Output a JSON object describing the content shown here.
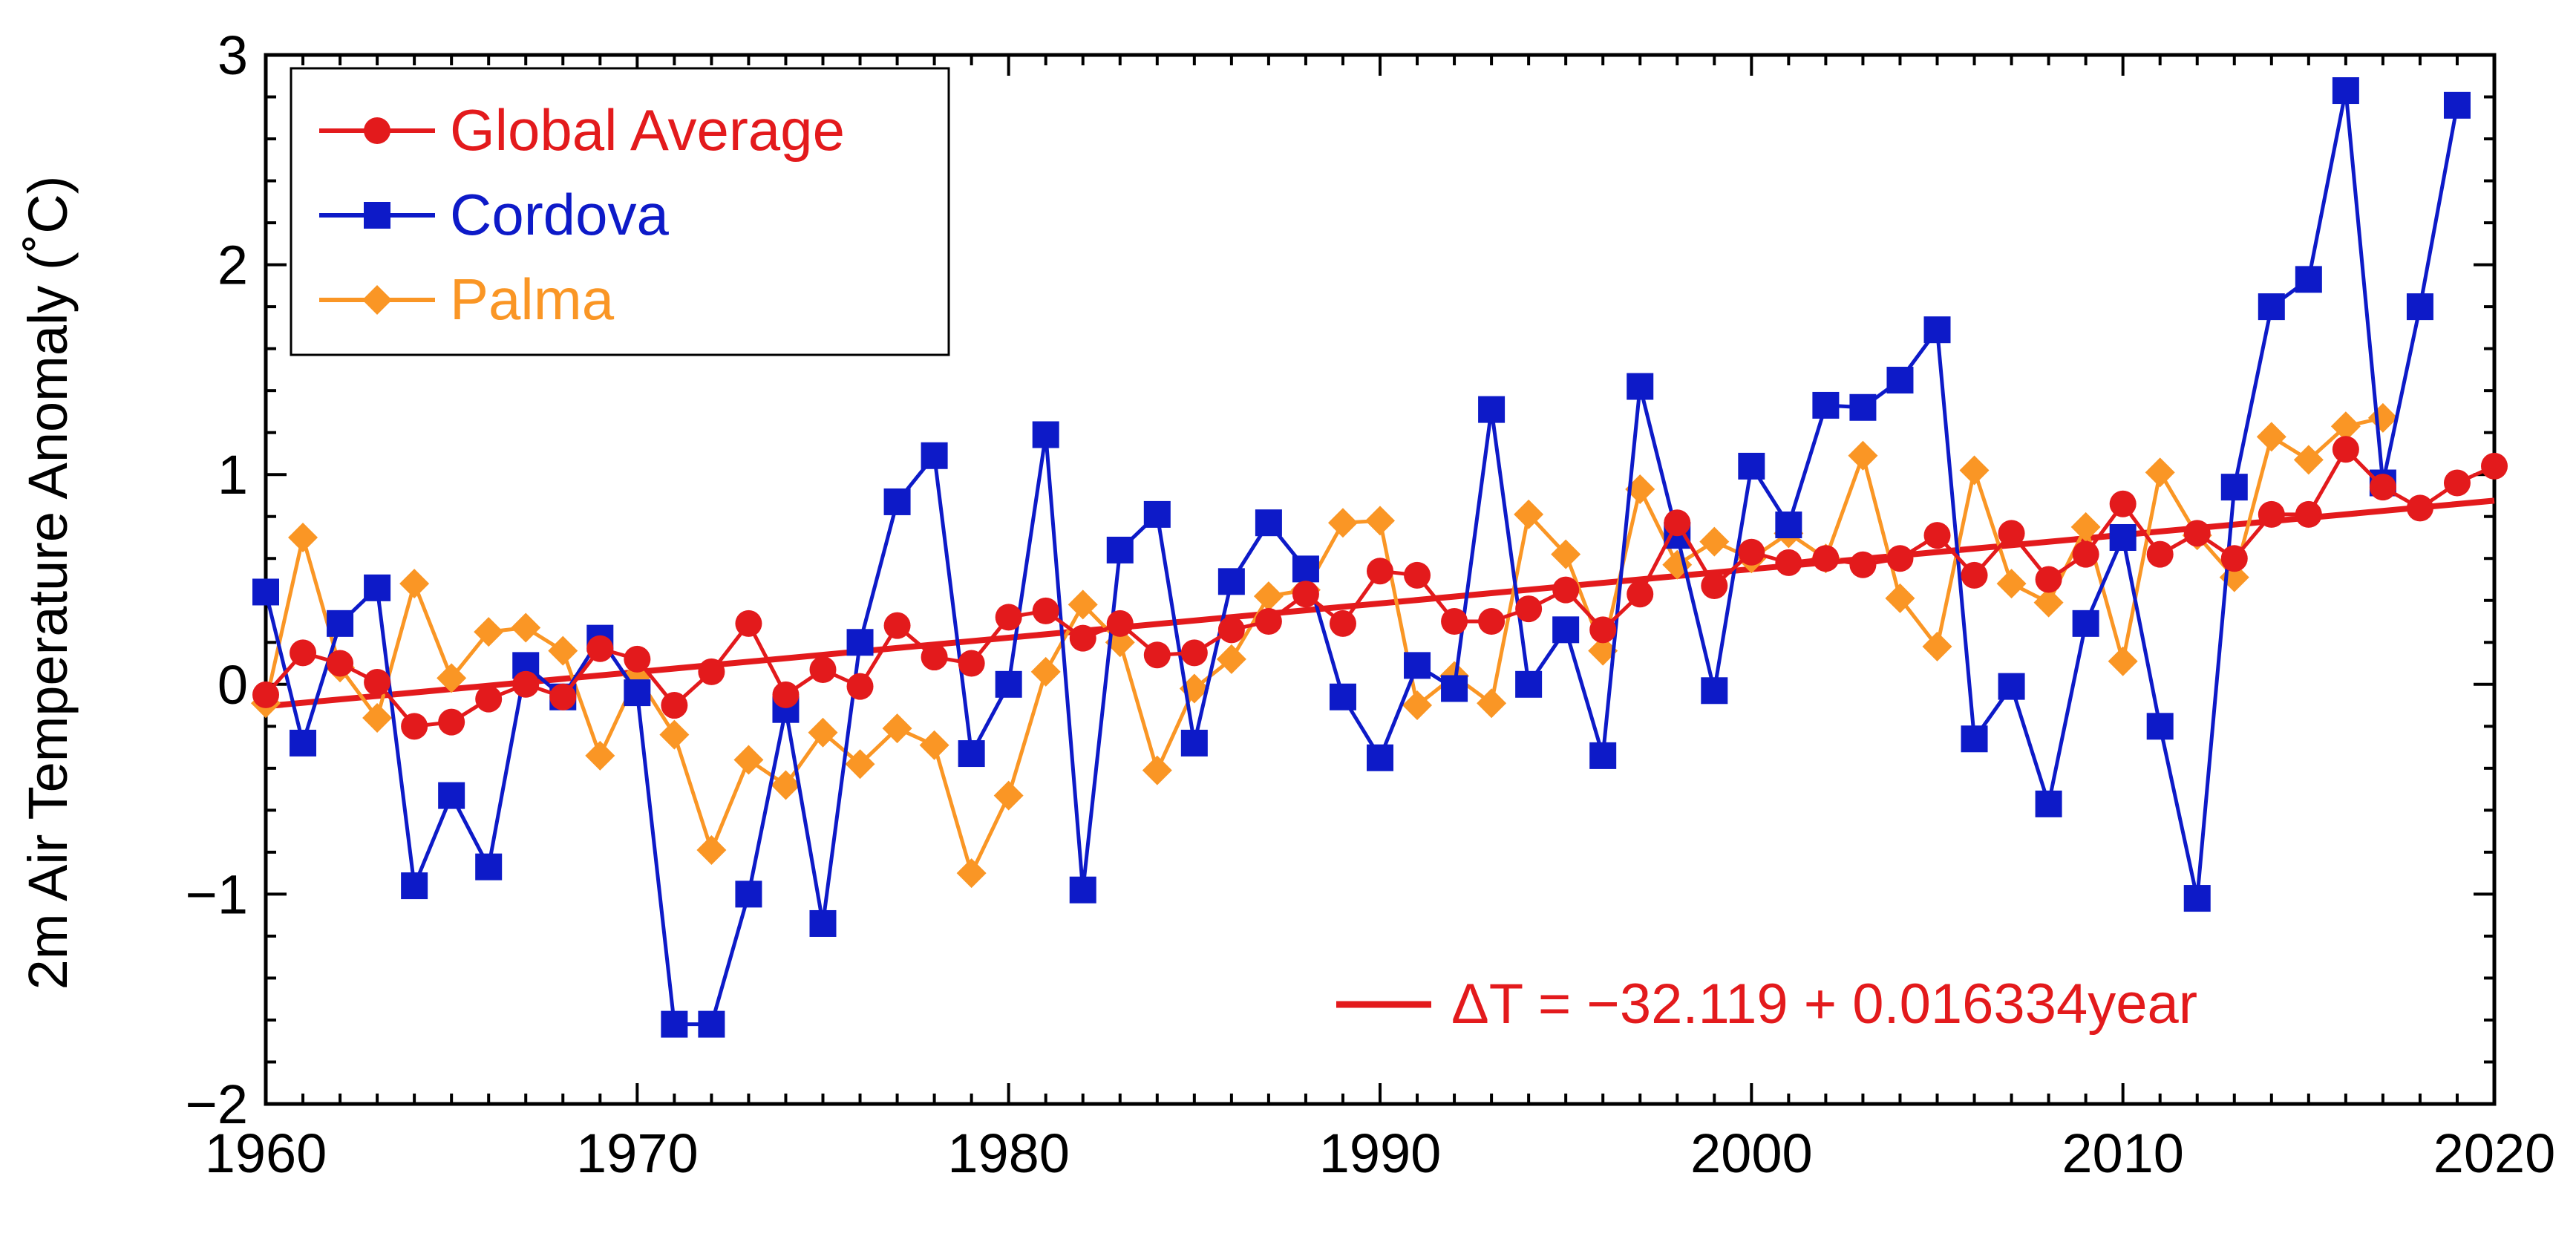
{
  "chart_data": {
    "type": "line",
    "xlabel": "",
    "ylabel": "2m Air Temperature Anomaly (˚C)",
    "xlim": [
      1960,
      2020
    ],
    "ylim": [
      -2,
      3
    ],
    "x_ticks": [
      1960,
      1970,
      1980,
      1990,
      2000,
      2010,
      2020
    ],
    "x_tick_labels": [
      "1960",
      "1970",
      "1980",
      "1990",
      "2000",
      "2010",
      "2020"
    ],
    "y_ticks": [
      -2,
      -1,
      0,
      1,
      2,
      3
    ],
    "y_tick_labels": [
      "−2",
      "−1",
      "0",
      "1",
      "2",
      "3"
    ],
    "grid": false,
    "legend_position": "top-left",
    "series": [
      {
        "name": "Global Average",
        "color": "#e31a1c",
        "marker": "circle",
        "x": [
          1960,
          1961,
          1962,
          1963,
          1964,
          1965,
          1966,
          1967,
          1968,
          1969,
          1970,
          1971,
          1972,
          1973,
          1974,
          1975,
          1976,
          1977,
          1978,
          1979,
          1980,
          1981,
          1982,
          1983,
          1984,
          1985,
          1986,
          1987,
          1988,
          1989,
          1990,
          1991,
          1992,
          1993,
          1994,
          1995,
          1996,
          1997,
          1998,
          1999,
          2000,
          2001,
          2002,
          2003,
          2004,
          2005,
          2006,
          2007,
          2008,
          2009,
          2010,
          2011,
          2012,
          2013,
          2014,
          2015,
          2016,
          2017,
          2018,
          2019,
          2020
        ],
        "values": [
          -0.05,
          0.15,
          0.1,
          0.01,
          -0.2,
          -0.18,
          -0.07,
          0.0,
          -0.06,
          0.17,
          0.12,
          -0.1,
          0.06,
          0.29,
          -0.05,
          0.07,
          -0.01,
          0.28,
          0.13,
          0.1,
          0.32,
          0.35,
          0.22,
          0.29,
          0.14,
          0.15,
          0.26,
          0.3,
          0.43,
          0.29,
          0.54,
          0.52,
          0.3,
          0.3,
          0.36,
          0.45,
          0.26,
          0.43,
          0.77,
          0.47,
          0.63,
          0.58,
          0.6,
          0.57,
          0.6,
          0.71,
          0.52,
          0.72,
          0.5,
          0.62,
          0.86,
          0.62,
          0.72,
          0.6,
          0.81,
          0.81,
          1.12,
          0.94,
          0.84,
          0.96,
          1.04
        ]
      },
      {
        "name": "Cordova",
        "color": "#0d1ac8",
        "marker": "square",
        "x": [
          1960,
          1961,
          1962,
          1963,
          1964,
          1965,
          1966,
          1967,
          1968,
          1969,
          1970,
          1971,
          1972,
          1973,
          1974,
          1975,
          1976,
          1977,
          1978,
          1979,
          1980,
          1981,
          1982,
          1983,
          1984,
          1985,
          1986,
          1987,
          1988,
          1989,
          1990,
          1991,
          1992,
          1993,
          1994,
          1995,
          1996,
          1997,
          1998,
          1999,
          2000,
          2001,
          2002,
          2003,
          2004,
          2005,
          2006,
          2007,
          2008,
          2009,
          2010,
          2011,
          2012,
          2013,
          2014,
          2015,
          2016,
          2017,
          2018,
          2019
        ],
        "values": [
          0.44,
          -0.28,
          0.29,
          0.46,
          -0.96,
          -0.53,
          -0.87,
          0.09,
          -0.06,
          0.22,
          -0.04,
          -1.62,
          -1.62,
          -1.0,
          -0.12,
          -1.14,
          0.2,
          0.87,
          1.09,
          -0.33,
          0.0,
          1.19,
          -0.98,
          0.64,
          0.81,
          -0.28,
          0.49,
          0.77,
          0.55,
          -0.06,
          -0.35,
          0.09,
          -0.02,
          1.31,
          0.0,
          0.26,
          -0.34,
          1.42,
          0.71,
          -0.03,
          1.04,
          0.76,
          1.33,
          1.32,
          1.45,
          1.69,
          -0.26,
          -0.01,
          -0.57,
          0.29,
          0.7,
          -0.2,
          -1.02,
          0.94,
          1.8,
          1.93,
          2.83,
          0.96,
          1.8,
          2.76
        ]
      },
      {
        "name": "Palma",
        "color": "#fa9625",
        "marker": "diamond",
        "x": [
          1960,
          1961,
          1962,
          1963,
          1964,
          1965,
          1966,
          1967,
          1968,
          1969,
          1970,
          1971,
          1972,
          1973,
          1974,
          1975,
          1976,
          1977,
          1978,
          1979,
          1980,
          1981,
          1982,
          1983,
          1984,
          1985,
          1986,
          1987,
          1988,
          1989,
          1990,
          1991,
          1992,
          1993,
          1994,
          1995,
          1996,
          1997,
          1998,
          1999,
          2000,
          2001,
          2002,
          2003,
          2004,
          2005,
          2006,
          2007,
          2008,
          2009,
          2010,
          2011,
          2012,
          2013,
          2014,
          2015,
          2016,
          2017
        ],
        "values": [
          -0.09,
          0.7,
          0.08,
          -0.16,
          0.48,
          0.03,
          0.25,
          0.27,
          0.16,
          -0.34,
          0.04,
          -0.24,
          -0.79,
          -0.36,
          -0.48,
          -0.23,
          -0.38,
          -0.21,
          -0.29,
          -0.9,
          -0.53,
          0.06,
          0.38,
          0.2,
          -0.41,
          -0.02,
          0.12,
          0.42,
          0.45,
          0.77,
          0.78,
          -0.1,
          0.04,
          -0.09,
          0.81,
          0.62,
          0.16,
          0.93,
          0.57,
          0.68,
          0.6,
          0.72,
          0.6,
          1.09,
          0.41,
          0.18,
          1.02,
          0.48,
          0.39,
          0.75,
          0.11,
          1.01,
          0.71,
          0.51,
          1.18,
          1.07,
          1.23,
          1.27
        ]
      }
    ],
    "trend": {
      "color": "#e31a1c",
      "intercept": -32.119,
      "slope": 0.016334,
      "x_range": [
        1960,
        2020
      ],
      "label": "ΔT = −32.119 + 0.016334year",
      "label_position": "bottom-right"
    }
  }
}
